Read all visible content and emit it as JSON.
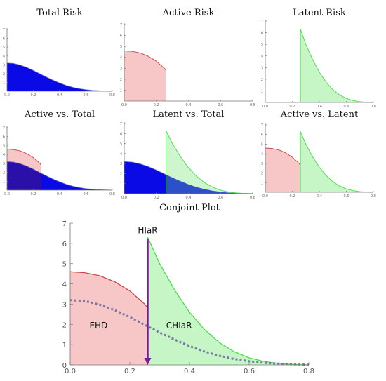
{
  "colors": {
    "total_fill": "#0a0ae6",
    "total_line": "#7a7ac8",
    "active_fill": "#f7c6c6",
    "active_line": "#c84040",
    "latent_fill": "#c6f5c6",
    "latent_line": "#40dd40",
    "overlap_fill": "#2a10a8",
    "dotted_line": "#7878a8",
    "arrow": "#7a1a9a"
  },
  "chart_data": [
    {
      "id": "total-risk",
      "type": "area",
      "title": "Total Risk",
      "xlim": [
        0,
        0.8
      ],
      "ylim": [
        0,
        7
      ],
      "xticks": [
        "0.0",
        "0.2",
        "0.4",
        "0.6",
        "0.8"
      ],
      "yticks": [
        "1",
        "2",
        "3",
        "4",
        "5",
        "6",
        "7"
      ],
      "layers": [
        "total"
      ]
    },
    {
      "id": "active-risk",
      "type": "area",
      "title": "Active Risk",
      "xlim": [
        0,
        0.8
      ],
      "ylim": [
        0,
        7
      ],
      "xticks": [
        "0.0",
        "0.2",
        "0.4",
        "0.6",
        "0.8"
      ],
      "yticks": [
        "1",
        "2",
        "3",
        "4",
        "5",
        "6",
        "7"
      ],
      "layers": [
        "active"
      ]
    },
    {
      "id": "latent-risk",
      "type": "area",
      "title": "Latent Risk",
      "xlim": [
        0,
        0.8
      ],
      "ylim": [
        0,
        7
      ],
      "xticks": [
        "0.0",
        "0.2",
        "0.4",
        "0.6",
        "0.8"
      ],
      "yticks": [
        "1",
        "2",
        "3",
        "4",
        "5",
        "6",
        "7"
      ],
      "layers": [
        "latent"
      ]
    },
    {
      "id": "active-vs-total",
      "type": "area",
      "title": "Active vs. Total",
      "xlim": [
        0,
        0.8
      ],
      "ylim": [
        0,
        7
      ],
      "xticks": [
        "0.0",
        "0.2",
        "0.4",
        "0.6",
        "0.8"
      ],
      "yticks": [
        "1",
        "2",
        "3",
        "4",
        "5",
        "6",
        "7"
      ],
      "layers": [
        "active",
        "total_overlap_active"
      ]
    },
    {
      "id": "latent-vs-total",
      "type": "area",
      "title": "Latent vs. Total",
      "xlim": [
        0,
        0.8
      ],
      "ylim": [
        0,
        7
      ],
      "xticks": [
        "0.0",
        "0.2",
        "0.4",
        "0.6",
        "0.8"
      ],
      "yticks": [
        "1",
        "2",
        "3",
        "4",
        "5",
        "6",
        "7"
      ],
      "layers": [
        "total",
        "latent_overlap_total"
      ]
    },
    {
      "id": "active-vs-latent",
      "type": "area",
      "title": "Active vs. Latent",
      "xlim": [
        0,
        0.8
      ],
      "ylim": [
        0,
        7
      ],
      "xticks": [
        "0.0",
        "0.2",
        "0.4",
        "0.6",
        "0.8"
      ],
      "yticks": [
        "1",
        "2",
        "3",
        "4",
        "5",
        "6",
        "7"
      ],
      "layers": [
        "active",
        "latent"
      ]
    },
    {
      "id": "conjoint-plot",
      "type": "area",
      "title": "Conjoint Plot",
      "xlim": [
        0,
        0.8
      ],
      "ylim": [
        0,
        7
      ],
      "xticks": [
        "0.0",
        "0.2",
        "0.4",
        "0.6",
        "0.8"
      ],
      "yticks": [
        "0",
        "1",
        "2",
        "3",
        "4",
        "5",
        "6",
        "7"
      ],
      "layers": [
        "active",
        "latent",
        "total_dotted",
        "arrow"
      ],
      "annotations": [
        {
          "text": "HIaR",
          "x": 0.26,
          "y": 6.5
        },
        {
          "text": "EHD",
          "x": 0.095,
          "y": 1.8
        },
        {
          "text": "CHIaR",
          "x": 0.365,
          "y": 1.8
        }
      ]
    }
  ],
  "series": {
    "threshold_x": 0.26,
    "total": {
      "x": [
        0,
        0.05,
        0.1,
        0.15,
        0.2,
        0.25,
        0.26,
        0.3,
        0.35,
        0.4,
        0.45,
        0.5,
        0.55,
        0.6,
        0.65,
        0.7,
        0.75,
        0.8
      ],
      "y": [
        3.2,
        3.15,
        2.97,
        2.7,
        2.36,
        1.98,
        1.9,
        1.6,
        1.25,
        0.93,
        0.66,
        0.45,
        0.29,
        0.18,
        0.1,
        0.06,
        0.03,
        0.01
      ]
    },
    "active": {
      "x": [
        0,
        0.05,
        0.1,
        0.15,
        0.2,
        0.25,
        0.26
      ],
      "y": [
        4.6,
        4.55,
        4.4,
        4.1,
        3.65,
        3.0,
        2.8
      ]
    },
    "latent": {
      "x": [
        0.26,
        0.3,
        0.35,
        0.4,
        0.45,
        0.5,
        0.55,
        0.6,
        0.65,
        0.7,
        0.75,
        0.8
      ],
      "y": [
        6.3,
        5.0,
        3.7,
        2.6,
        1.75,
        1.1,
        0.65,
        0.35,
        0.17,
        0.07,
        0.02,
        0.0
      ]
    },
    "arrow": {
      "x": 0.26,
      "y_start": 6.2,
      "y_end": 0
    }
  }
}
